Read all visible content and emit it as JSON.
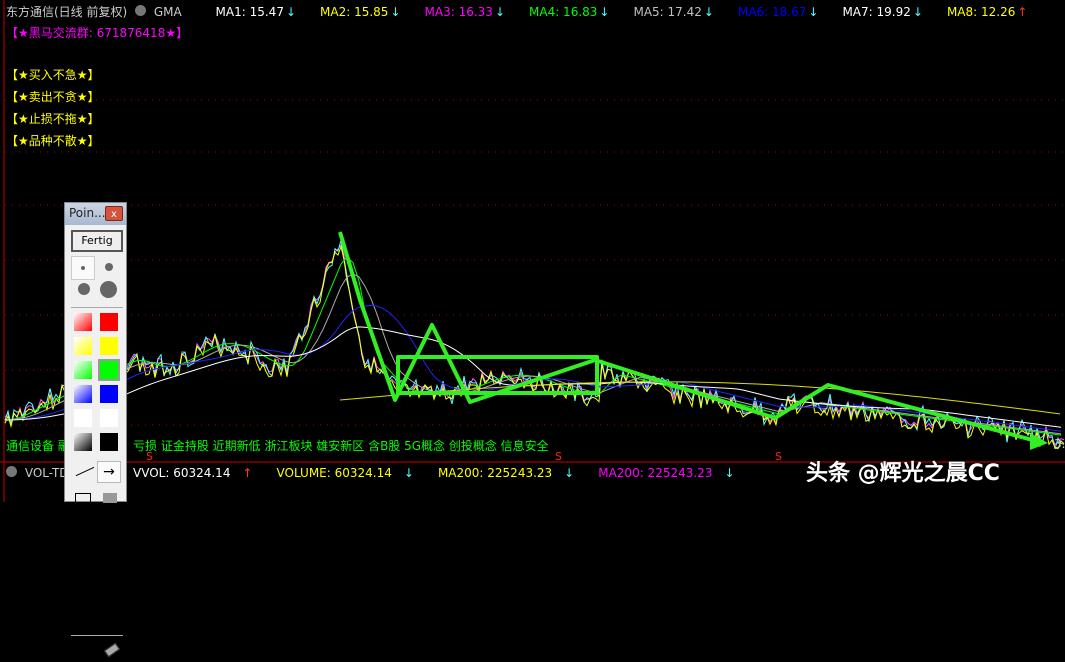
{
  "header": {
    "title": "东方通信(日线 前复权)",
    "indicator": "GMA",
    "ma": [
      {
        "label": "MA1: 15.47",
        "color": "#ffffff",
        "dir": "down"
      },
      {
        "label": "MA2: 15.85",
        "color": "#ffff00",
        "dir": "down"
      },
      {
        "label": "MA3: 16.33",
        "color": "#ff00ff",
        "dir": "down"
      },
      {
        "label": "MA4: 16.83",
        "color": "#00ff00",
        "dir": "down"
      },
      {
        "label": "MA5: 17.42",
        "color": "#c0c0c0",
        "dir": "down"
      },
      {
        "label": "MA6: 18.67",
        "color": "#0000ff",
        "dir": "down"
      },
      {
        "label": "MA7: 19.92",
        "color": "#ffffff",
        "dir": "down"
      },
      {
        "label": "MA8: 12.26",
        "color": "#ffff00",
        "dir": "up"
      }
    ]
  },
  "group_text": "【★黑马交流群: 671876418★】",
  "tips": [
    "【★买入不急★】",
    "【★卖出不贪★】",
    "【★止损不拖★】",
    "【★品种不散★】"
  ],
  "concepts_left": "通信设备 融",
  "concepts_right": "亏损 证金持股 近期新低 浙江板块 雄安新区 含B股 5G概念 创投概念 信息安全",
  "price_label": "3.",
  "volume": {
    "indicator": "VOL-TD",
    "items": [
      {
        "label": "VVOL: 60324.14",
        "color": "#ffffff",
        "dir": "up"
      },
      {
        "label": "VOLUME: 60324.14",
        "color": "#ffff00",
        "dir": "down"
      },
      {
        "label": "MA200: 225243.23",
        "color": "#ffff00",
        "dir": "down"
      },
      {
        "label": "MA200: 225243.23",
        "color": "#ff00ff",
        "dir": "down"
      }
    ]
  },
  "panel": {
    "title": "Poin...",
    "close": "x",
    "done": "Fertig",
    "colors": [
      "#ff0000",
      "#ffff00",
      "#00ff00",
      "#0000ff",
      "#ffffff",
      "#000000"
    ],
    "selected_color": "#00ff00",
    "selected_tool": "arrow"
  },
  "watermark": "头条 @辉光之晨CC",
  "accent": "#00ff00"
}
